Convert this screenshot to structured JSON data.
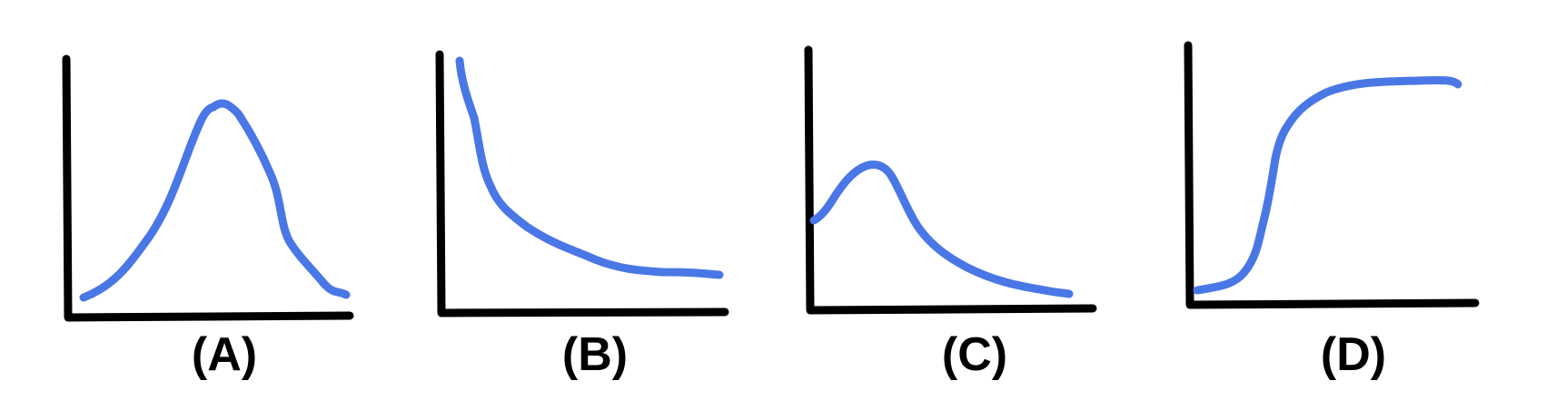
{
  "figure": {
    "description_colors": {
      "axis_color": "#000000",
      "curve_color": "#4a77e6",
      "background": "#ffffff"
    },
    "panels": [
      {
        "id": "A",
        "label": "(A)",
        "shape": "symmetric bell curve (peak in middle)"
      },
      {
        "id": "B",
        "label": "(B)",
        "shape": "steep decay approaching a plateau"
      },
      {
        "id": "C",
        "label": "(C)",
        "shape": "right-skewed peak with long tail"
      },
      {
        "id": "D",
        "label": "(D)",
        "shape": "sigmoid / S-curve rising to plateau"
      }
    ]
  }
}
